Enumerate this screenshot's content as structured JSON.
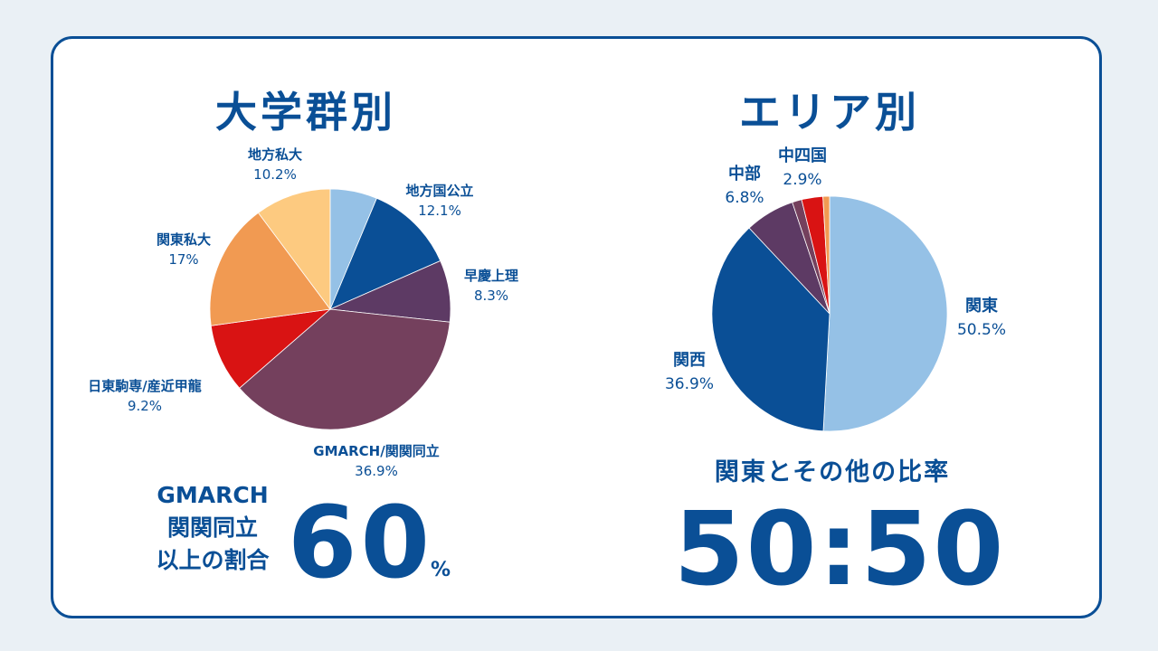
{
  "left_panel": {
    "title": "大学群別",
    "stat": {
      "label_lines": [
        "GMARCH",
        "関関同立",
        "以上の割合"
      ],
      "value": "60",
      "unit": "%"
    }
  },
  "right_panel": {
    "title": "エリア別",
    "ratio": {
      "label": "関東とその他の比率",
      "value": "50:50"
    }
  },
  "chart_data": [
    {
      "type": "pie",
      "title": "大学群別",
      "slices": [
        {
          "label": "地方国公立",
          "value": 12.1,
          "pct_text": "12.1%",
          "color": "#0a4f96"
        },
        {
          "label": "早慶上理",
          "value": 8.3,
          "pct_text": "8.3%",
          "color": "#5d3a64"
        },
        {
          "label": "GMARCH/関関同立",
          "value": 36.9,
          "pct_text": "36.9%",
          "color": "#74405d"
        },
        {
          "label": "日東駒専/産近甲龍",
          "value": 9.2,
          "pct_text": "9.2%",
          "color": "#d91313"
        },
        {
          "label": "関東私大",
          "value": 17,
          "pct_text": "17%",
          "color": "#f19a52"
        },
        {
          "label": "地方私大",
          "value": 10.2,
          "pct_text": "10.2%",
          "color": "#fdca80"
        },
        {
          "label": "",
          "value": 6.3,
          "pct_text": "",
          "color": "#95c1e6"
        }
      ]
    },
    {
      "type": "pie",
      "title": "エリア別",
      "slices": [
        {
          "label": "関東",
          "value": 50.5,
          "pct_text": "50.5%",
          "color": "#95c1e6"
        },
        {
          "label": "関西",
          "value": 36.9,
          "pct_text": "36.9%",
          "color": "#0a4f96"
        },
        {
          "label": "中部",
          "value": 6.8,
          "pct_text": "6.8%",
          "color": "#5d3a64"
        },
        {
          "label": "",
          "value": 1.3,
          "pct_text": "",
          "color": "#74405d"
        },
        {
          "label": "中四国",
          "value": 2.9,
          "pct_text": "2.9%",
          "color": "#d91313"
        },
        {
          "label": "",
          "value": 0.9,
          "pct_text": "",
          "color": "#f19a52"
        }
      ]
    }
  ]
}
